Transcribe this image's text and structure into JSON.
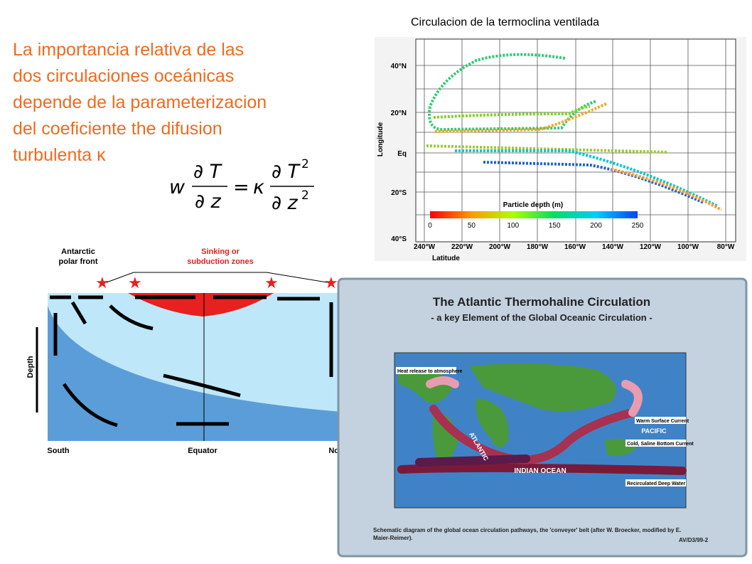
{
  "slide": {
    "text_lines": [
      "La importancia relativa de las",
      "dos circulaciones oceánicas",
      "depende de la parameterizacion",
      "del coeficiente the difusion",
      "turbulenta κ"
    ],
    "equation": {
      "w": "w",
      "lhs_num": "∂ T",
      "lhs_den": "∂ z",
      "equals": "=",
      "kappa": "κ",
      "rhs_num": "∂ T",
      "rhs_num_exp": "2",
      "rhs_den": "∂ z",
      "rhs_den_exp": "2"
    }
  },
  "ventilated": {
    "title": "Circulacion de la termoclina ventilada",
    "lat_labels": [
      "40°N",
      "20°N",
      "Eq",
      "20°S",
      "40°S"
    ],
    "lon_labels": [
      "240°W",
      "220°W",
      "200°W",
      "180°W",
      "160°W",
      "140°W",
      "120°W",
      "100°W",
      "80°W"
    ],
    "y_axis": "Longitude",
    "x_axis": "Latitude",
    "colorbar_title": "Particle depth (m)",
    "colorbar_ticks": [
      "0",
      "50",
      "100",
      "150",
      "200",
      "250"
    ]
  },
  "section": {
    "front_label": [
      "Antarctic",
      "polar front"
    ],
    "sinking_label": [
      "Sinking or",
      "subduction zones"
    ],
    "depth": "Depth",
    "south": "South",
    "equator": "Equator",
    "north": "North"
  },
  "poster": {
    "title": "The Atlantic Thermohaline Circulation",
    "subtitle": "- a key Element of the Global Oceanic Circulation -",
    "atlantic": "ATLANTIC",
    "indian": "INDIAN OCEAN",
    "pacific": "PACIFIC",
    "legend": [
      "Heat release to atmosphere",
      "Warm Surface Current",
      "Cold, Saline Bottom Current",
      "Recirculated Deep Water"
    ],
    "caption": [
      "Schematic diagram of the global ocean circulation pathways, the 'conveyer' belt (after W. Broecker, modified by E.",
      "Maier-Reimer)."
    ],
    "code": "AV/D3/99-2"
  }
}
